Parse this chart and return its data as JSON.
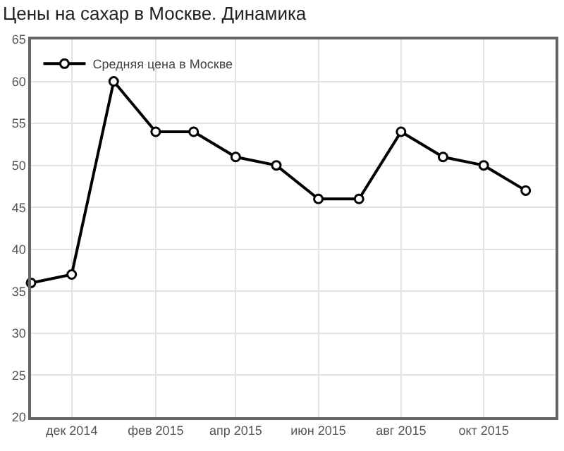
{
  "chart_data": {
    "type": "line",
    "title": "Цены на сахар в Москве. Динамика",
    "x": [
      "2014-11-01",
      "2014-12-01",
      "2015-01-01",
      "2015-02-01",
      "2015-03-01",
      "2015-04-01",
      "2015-05-01",
      "2015-06-01",
      "2015-07-01",
      "2015-08-01",
      "2015-09-01",
      "2015-10-01",
      "2015-11-01"
    ],
    "series": [
      {
        "name": "Средняя цена в Москве",
        "color": "#000000",
        "values": [
          36,
          37,
          60,
          54,
          54,
          51,
          50,
          46,
          46,
          54,
          51,
          50,
          47
        ]
      }
    ],
    "xlim": [
      "2014-11-01",
      "2015-11-23"
    ],
    "xticks": [
      {
        "value": "2014-12-01",
        "label": "дек 2014"
      },
      {
        "value": "2015-02-01",
        "label": "фев 2015"
      },
      {
        "value": "2015-04-01",
        "label": "апр 2015"
      },
      {
        "value": "2015-06-01",
        "label": "июн 2015"
      },
      {
        "value": "2015-08-01",
        "label": "авг 2015"
      },
      {
        "value": "2015-10-01",
        "label": "окт 2015"
      }
    ],
    "ylim": [
      20,
      65
    ],
    "yticks": [
      20,
      25,
      30,
      35,
      40,
      45,
      50,
      55,
      60,
      65
    ],
    "grid": true,
    "legend": "top left",
    "marker": "circle",
    "line_style": "solid"
  }
}
